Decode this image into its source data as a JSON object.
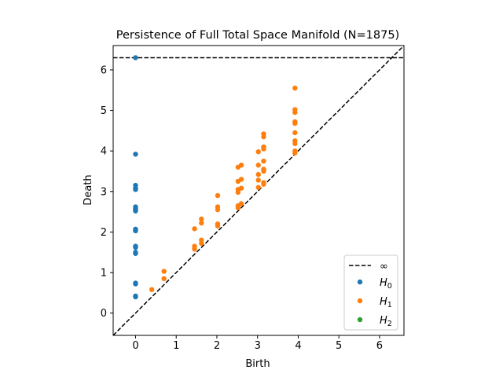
{
  "chart_data": {
    "type": "scatter",
    "title": "Persistence of Full Total Space Manifold (N=1875)",
    "xlabel": "Birth",
    "ylabel": "Death",
    "xlim": [
      -0.55,
      6.6
    ],
    "ylim": [
      -0.55,
      6.6
    ],
    "xticks": [
      0,
      1,
      2,
      3,
      4,
      5,
      6
    ],
    "yticks": [
      0,
      1,
      2,
      3,
      4,
      5,
      6
    ],
    "grid": false,
    "legend_position": "lower right",
    "infinity_line": {
      "label": "∞",
      "y": 6.3,
      "color": "#000000",
      "style": "dashed"
    },
    "diagonal": {
      "color": "#000000",
      "style": "dashed"
    },
    "series": [
      {
        "name": "H0",
        "label_base": "H",
        "label_sub": "0",
        "color": "#1f77b4",
        "points": [
          [
            0,
            6.3
          ],
          [
            0,
            3.92
          ],
          [
            0,
            3.15
          ],
          [
            0,
            3.08
          ],
          [
            0,
            3.05
          ],
          [
            0,
            2.62
          ],
          [
            0,
            2.58
          ],
          [
            0,
            2.55
          ],
          [
            0,
            2.52
          ],
          [
            0,
            2.07
          ],
          [
            0,
            2.05
          ],
          [
            0,
            2.03
          ],
          [
            0,
            1.65
          ],
          [
            0,
            1.62
          ],
          [
            0,
            1.5
          ],
          [
            0,
            1.47
          ],
          [
            0,
            0.74
          ],
          [
            0,
            0.72
          ],
          [
            0,
            0.42
          ],
          [
            0,
            0.4
          ]
        ]
      },
      {
        "name": "H1",
        "label_base": "H",
        "label_sub": "1",
        "color": "#ff7f0e",
        "points": [
          [
            0.4,
            0.58
          ],
          [
            0.7,
            1.03
          ],
          [
            0.7,
            0.85
          ],
          [
            1.45,
            2.08
          ],
          [
            1.45,
            1.65
          ],
          [
            1.45,
            1.58
          ],
          [
            1.62,
            2.32
          ],
          [
            1.62,
            2.22
          ],
          [
            1.62,
            1.8
          ],
          [
            1.62,
            1.72
          ],
          [
            2.02,
            2.9
          ],
          [
            2.02,
            2.62
          ],
          [
            2.02,
            2.55
          ],
          [
            2.02,
            2.2
          ],
          [
            2.02,
            2.15
          ],
          [
            2.52,
            3.6
          ],
          [
            2.52,
            3.25
          ],
          [
            2.52,
            3.05
          ],
          [
            2.52,
            2.98
          ],
          [
            2.52,
            2.65
          ],
          [
            2.52,
            2.6
          ],
          [
            2.6,
            3.65
          ],
          [
            2.6,
            3.3
          ],
          [
            2.6,
            3.08
          ],
          [
            2.6,
            2.7
          ],
          [
            3.02,
            3.98
          ],
          [
            3.02,
            3.65
          ],
          [
            3.02,
            3.42
          ],
          [
            3.02,
            3.28
          ],
          [
            3.02,
            3.1
          ],
          [
            3.15,
            4.42
          ],
          [
            3.15,
            4.35
          ],
          [
            3.15,
            4.1
          ],
          [
            3.15,
            4.05
          ],
          [
            3.15,
            3.75
          ],
          [
            3.15,
            3.55
          ],
          [
            3.15,
            3.5
          ],
          [
            3.15,
            3.22
          ],
          [
            3.15,
            3.18
          ],
          [
            3.92,
            5.55
          ],
          [
            3.92,
            5.02
          ],
          [
            3.92,
            4.95
          ],
          [
            3.92,
            4.72
          ],
          [
            3.92,
            4.68
          ],
          [
            3.92,
            4.45
          ],
          [
            3.92,
            4.25
          ],
          [
            3.92,
            4.18
          ],
          [
            3.92,
            4.0
          ],
          [
            3.92,
            3.95
          ]
        ]
      },
      {
        "name": "H2",
        "label_base": "H",
        "label_sub": "2",
        "color": "#2ca02c",
        "points": []
      }
    ]
  }
}
